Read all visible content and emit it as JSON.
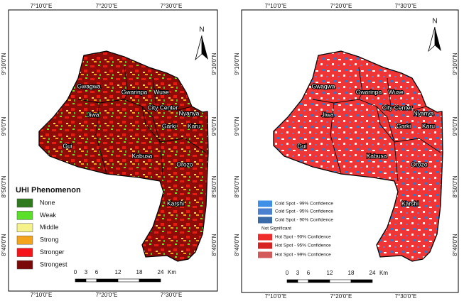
{
  "maps": [
    {
      "lon_labels_top": [
        "7°10'0\"E",
        "7°20'0\"E",
        "7°30'0\"E"
      ],
      "lon_labels_bottom": [
        "7°10'0\"E",
        "7°20'0\"E",
        "7°30'0\"E"
      ],
      "lat_labels_left": [
        "9°10'0\"N",
        "9°0'0\"N",
        "8°50'0\"N",
        "8°40'0\"N"
      ],
      "lat_labels_right": [
        "9°10'0\"N",
        "9°0'0\"N",
        "8°50'0\"N",
        "8°40'0\"N"
      ],
      "places": [
        "Gwagwa",
        "Gwarinpa",
        "Wuse",
        "City Center",
        "Nyanya",
        "Jiwa",
        "Garki",
        "Karu",
        "Gui",
        "Kabusa",
        "Orozo",
        "Karshi"
      ],
      "north": "N",
      "legend": {
        "title": "UHI Phenomenon",
        "items": [
          {
            "label": "None",
            "color": "#2f7a1c"
          },
          {
            "label": "Weak",
            "color": "#5be02a"
          },
          {
            "label": "Middle",
            "color": "#f6f28a"
          },
          {
            "label": "Strong",
            "color": "#f4a41a"
          },
          {
            "label": "Stronger",
            "color": "#f4141a"
          },
          {
            "label": "Strongest",
            "color": "#7a0a0a"
          }
        ]
      },
      "scale": {
        "ticks": [
          0,
          3,
          6,
          12,
          18,
          24
        ],
        "unit": "Km"
      }
    },
    {
      "lon_labels_top": [
        "7°10'0\"E",
        "7°20'0\"E",
        "7°30'0\"E"
      ],
      "lon_labels_bottom": [
        "7°10'0\"E",
        "7°20'0\"E",
        "7°30'0\"E"
      ],
      "lat_labels_left": [
        "9°10'0\"N",
        "9°0'0\"N",
        "8°50'0\"N",
        "8°40'0\"N"
      ],
      "lat_labels_right": [
        "9°10'0\"N",
        "9°0'0\"N",
        "8°50'0\"N",
        "8°40'0\"N"
      ],
      "places": [
        "Gwagwa",
        "Gwarinpa",
        "Wuse",
        "City Center",
        "Nyanya",
        "Jiwa",
        "Garki",
        "Karu",
        "Gui",
        "Kabusa",
        "Orozo",
        "Karshi"
      ],
      "north": "N",
      "legend": {
        "items": [
          {
            "label": "Cold Spot - 99% Confidence",
            "color": "#3d8fe8"
          },
          {
            "label": "Cold Spot - 95% Confidence",
            "color": "#4a80cf"
          },
          {
            "label": "Cold Spot - 90% Confidence",
            "color": "#3b6aa8"
          },
          {
            "label": "Not Significant"
          },
          {
            "label": "Hot Spot - 90% Confidence",
            "color": "#ef2b2b"
          },
          {
            "label": "Hot Spot - 95% Confidence",
            "color": "#d82222"
          },
          {
            "label": "Hot Spot - 99% Confidence",
            "color": "#d35a5a"
          }
        ]
      },
      "scale": {
        "ticks": [
          0,
          3,
          6,
          12,
          18,
          24
        ],
        "unit": "Km"
      }
    }
  ]
}
